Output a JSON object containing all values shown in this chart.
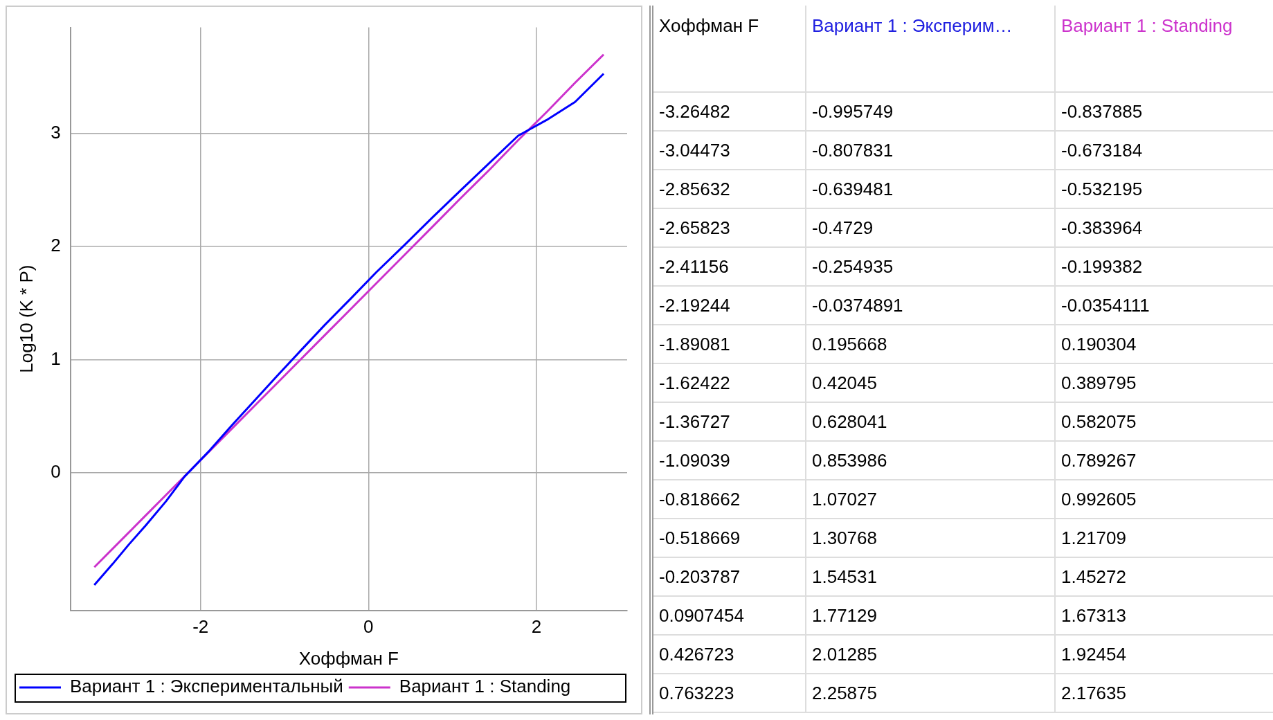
{
  "chart_data": [
    {
      "type": "line",
      "xlabel": "Хоффман F",
      "ylabel": "Log10 (K * P)",
      "x": [
        -3.26482,
        -3.04473,
        -2.85632,
        -2.65823,
        -2.41156,
        -2.19244,
        -1.89081,
        -1.62422,
        -1.36727,
        -1.09039,
        -0.818662,
        -0.518669,
        -0.203787,
        0.0907454,
        0.426723,
        0.763223,
        1.1,
        1.44,
        1.78,
        2.12,
        2.46,
        2.8
      ],
      "series": [
        {
          "name": "Вариант 1 : Экспериментальный",
          "color": "#0000ff",
          "values": [
            -0.995749,
            -0.807831,
            -0.639481,
            -0.4729,
            -0.254935,
            -0.0374891,
            0.195668,
            0.42045,
            0.628041,
            0.853986,
            1.07027,
            1.30768,
            1.54531,
            1.77129,
            2.01285,
            2.25875,
            2.5,
            2.74,
            2.98,
            3.12,
            3.28,
            3.53
          ]
        },
        {
          "name": "Вариант 1 : Standing",
          "color": "#cc33cc",
          "values": [
            -0.837885,
            -0.673184,
            -0.532195,
            -0.383964,
            -0.199382,
            -0.0354111,
            0.190304,
            0.389795,
            0.582075,
            0.789267,
            0.992605,
            1.21709,
            1.45272,
            1.67313,
            1.92454,
            2.17635,
            2.43,
            2.68,
            2.94,
            3.19,
            3.45,
            3.7
          ]
        }
      ],
      "xlim": [
        -3.55,
        3.08
      ],
      "xticks": [
        -2,
        0,
        2
      ],
      "ylim": [
        -1.22,
        3.94
      ],
      "yticks": [
        0,
        1,
        2,
        3
      ],
      "grid": true,
      "legend": "bottom",
      "marker": "none",
      "line_style": "solid"
    },
    {
      "type": "heatmap",
      "data_labels": true,
      "ylabel": "Хоффман F",
      "categories": [
        "Вариант 1 : Эксперим…",
        "Вариант 1 : Standing"
      ],
      "colors": [
        "#2020e0",
        "#cc33cc"
      ],
      "y_categories": [
        "-3.26482",
        "-3.04473",
        "-2.85632",
        "-2.65823",
        "-2.41156",
        "-2.19244",
        "-1.89081",
        "-1.62422",
        "-1.36727",
        "-1.09039",
        "-0.818662",
        "-0.518669",
        "-0.203787",
        "0.0907454",
        "0.426723",
        "0.763223"
      ],
      "cells": [
        [
          -0.995749,
          -0.837885
        ],
        [
          -0.807831,
          -0.673184
        ],
        [
          -0.639481,
          -0.532195
        ],
        [
          -0.4729,
          -0.383964
        ],
        [
          -0.254935,
          -0.199382
        ],
        [
          -0.0374891,
          -0.0354111
        ],
        [
          0.195668,
          0.190304
        ],
        [
          0.42045,
          0.389795
        ],
        [
          0.628041,
          0.582075
        ],
        [
          0.853986,
          0.789267
        ],
        [
          1.07027,
          0.992605
        ],
        [
          1.30768,
          1.21709
        ],
        [
          1.54531,
          1.45272
        ],
        [
          1.77129,
          1.67313
        ],
        [
          2.01285,
          1.92454
        ],
        [
          2.25875,
          2.17635
        ]
      ]
    }
  ]
}
